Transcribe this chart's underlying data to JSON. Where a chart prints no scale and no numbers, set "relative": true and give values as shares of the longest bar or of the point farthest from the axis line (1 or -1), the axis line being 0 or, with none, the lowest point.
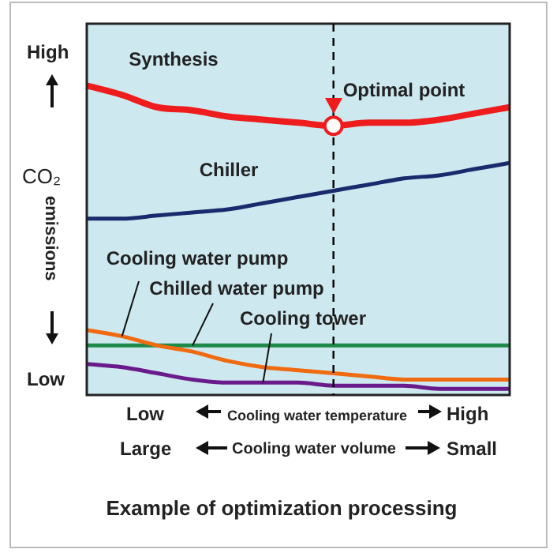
{
  "chart_data": {
    "type": "line",
    "relative": true,
    "title": "Example of optimization processing",
    "ylabel": "CO₂ emissions",
    "categories": [
      null,
      null,
      null,
      null,
      null,
      null,
      null,
      null,
      null,
      null,
      null,
      null,
      null
    ],
    "series": [
      {
        "name": "Synthesis",
        "color": "#ee1c1c",
        "values": [
          1,
          0.97,
          0.93,
          0.92,
          0.9,
          0.89,
          0.88,
          0.87,
          0.88,
          0.88,
          0.89,
          0.91,
          0.93
        ]
      },
      {
        "name": "Chiller",
        "color": "#1a2a6c",
        "values": [
          0.57,
          0.57,
          0.58,
          0.59,
          0.6,
          0.62,
          0.64,
          0.66,
          0.68,
          0.7,
          0.71,
          0.73,
          0.75
        ]
      },
      {
        "name": "Cooling water pump",
        "color": "#f06a10",
        "values": [
          0.21,
          0.19,
          0.16,
          0.14,
          0.11,
          0.09,
          0.08,
          0.07,
          0.06,
          0.05,
          0.05,
          0.05,
          0.05
        ]
      },
      {
        "name": "Chilled water pump",
        "color": "#1e8a4a",
        "values": [
          0.16,
          0.16,
          0.16,
          0.16,
          0.16,
          0.16,
          0.16,
          0.16,
          0.16,
          0.16,
          0.16,
          0.16,
          0.16
        ]
      },
      {
        "name": "Cooling tower",
        "color": "#6a1a8a",
        "values": [
          0.1,
          0.09,
          0.07,
          0.05,
          0.04,
          0.04,
          0.04,
          0.03,
          0.03,
          0.03,
          0.02,
          0.02,
          0.02
        ]
      }
    ],
    "ref_lines": [
      {
        "axis": "x",
        "label": "Optimal point",
        "color": "#000000",
        "line_style": "dashed"
      }
    ],
    "annotations": [
      "High",
      "Low",
      "Low",
      "High",
      "Cooling water temperature",
      "Large",
      "Small",
      "Cooling water volume"
    ],
    "tick_labels": false,
    "grid": false,
    "legend": false,
    "marker": "none",
    "line_style": "solid"
  }
}
